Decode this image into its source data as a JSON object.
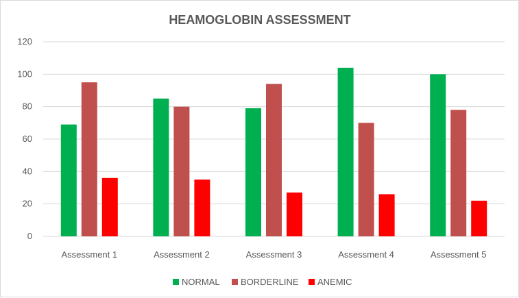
{
  "chart_data": {
    "type": "bar",
    "title": "HEAMOGLOBIN ASSESSMENT",
    "xlabel": "",
    "ylabel": "",
    "categories": [
      "Assessment 1",
      "Assessment 2",
      "Assessment 3",
      "Assessment 4",
      "Assessment 5"
    ],
    "series": [
      {
        "name": "NORMAL",
        "color": "#00b050",
        "values": [
          69,
          85,
          79,
          104,
          100
        ]
      },
      {
        "name": "BORDERLINE",
        "color": "#c0504d",
        "values": [
          95,
          80,
          94,
          70,
          78
        ]
      },
      {
        "name": "ANEMIC",
        "color": "#ff0000",
        "values": [
          36,
          35,
          27,
          26,
          22
        ]
      }
    ],
    "ylim": [
      0,
      120
    ],
    "yticks": [
      0,
      20,
      40,
      60,
      80,
      100,
      120
    ],
    "grid": true,
    "legend_position": "bottom"
  }
}
